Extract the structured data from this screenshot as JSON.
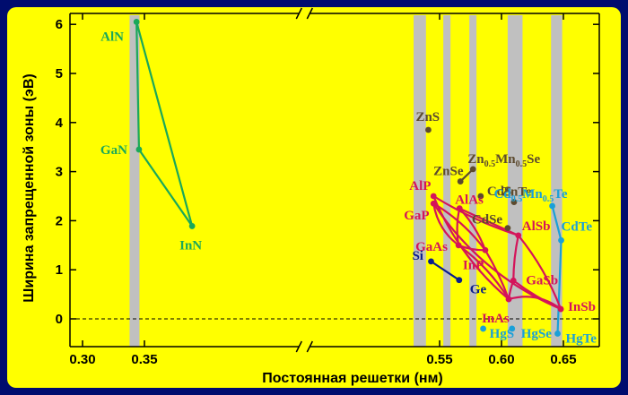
{
  "chart_data": {
    "type": "scatter",
    "title": "",
    "xlabel": "Постоянная решетки (нм)",
    "ylabel": "Ширина запрещенной зоны (эВ)",
    "xlim": [
      0.29,
      0.665
    ],
    "ylim": [
      -0.4,
      6.2
    ],
    "axis_break": [
      0.395,
      0.525
    ],
    "xticks": [
      {
        "value": 0.3,
        "label": "0.30"
      },
      {
        "value": 0.35,
        "label": "0.35"
      },
      {
        "value": 0.55,
        "label": "0.55"
      },
      {
        "value": 0.6,
        "label": "0.60"
      },
      {
        "value": 0.65,
        "label": "0.65"
      }
    ],
    "yticks": [
      {
        "value": 0,
        "label": "0"
      },
      {
        "value": 1,
        "label": "1"
      },
      {
        "value": 2,
        "label": "2"
      },
      {
        "value": 3,
        "label": "3"
      },
      {
        "value": 4,
        "label": "4"
      },
      {
        "value": 5,
        "label": "5"
      },
      {
        "value": 6,
        "label": "6"
      }
    ],
    "grid": false,
    "zero_line": "dashed",
    "bands": [
      [
        0.338,
        0.346
      ],
      [
        0.529,
        0.539
      ],
      [
        0.553,
        0.557
      ],
      [
        0.574,
        0.579
      ],
      [
        0.605,
        0.617
      ],
      [
        0.64,
        0.649
      ]
    ],
    "colors": {
      "nitrides": "#1aa85a",
      "iii_v": "#d4145a",
      "ii_vi": "#5c4a2e",
      "group_iv": "#0a1e8c",
      "hg_cd": "#1aa0d8"
    },
    "points": [
      {
        "name": "AlN",
        "label": [
          "AlN"
        ],
        "x": 0.3436,
        "y": 6.05,
        "group": "nitrides",
        "label_dx": -40,
        "label_dy": 16
      },
      {
        "name": "GaN",
        "label": [
          "GaN"
        ],
        "x": 0.3456,
        "y": 3.45,
        "group": "nitrides",
        "label_dx": -43,
        "label_dy": 0
      },
      {
        "name": "InN",
        "label": [
          "InN"
        ],
        "x": 0.3885,
        "y": 1.89,
        "group": "nitrides",
        "label_dx": -14,
        "label_dy": 21
      },
      {
        "name": "AlP",
        "label": [
          "AlP"
        ],
        "x": 0.5451,
        "y": 2.5,
        "group": "iii_v",
        "label_dx": -27,
        "label_dy": -12
      },
      {
        "name": "GaP",
        "label": [
          "GaP"
        ],
        "x": 0.5451,
        "y": 2.35,
        "group": "iii_v",
        "label_dx": -33,
        "label_dy": 13
      },
      {
        "name": "AlAs",
        "label": [
          "AlAs"
        ],
        "x": 0.5661,
        "y": 2.25,
        "group": "iii_v",
        "label_dx": -5,
        "label_dy": -10
      },
      {
        "name": "GaAs",
        "label": [
          "GaAs"
        ],
        "x": 0.5653,
        "y": 1.5,
        "group": "iii_v",
        "label_dx": -48,
        "label_dy": 1
      },
      {
        "name": "InP",
        "label": [
          "InP"
        ],
        "x": 0.5869,
        "y": 1.4,
        "group": "iii_v",
        "label_dx": -25,
        "label_dy": 16
      },
      {
        "name": "AlSb",
        "label": [
          "AlSb"
        ],
        "x": 0.6136,
        "y": 1.7,
        "group": "iii_v",
        "label_dx": 4,
        "label_dy": -11
      },
      {
        "name": "GaSb",
        "label": [
          "GaSb"
        ],
        "x": 0.6096,
        "y": 0.78,
        "group": "iii_v",
        "label_dx": 14,
        "label_dy": -1
      },
      {
        "name": "InAs",
        "label": [
          "InAs"
        ],
        "x": 0.6058,
        "y": 0.4,
        "group": "iii_v",
        "label_dx": -30,
        "label_dy": 21
      },
      {
        "name": "InSb",
        "label": [
          "InSb"
        ],
        "x": 0.6479,
        "y": 0.2,
        "group": "iii_v",
        "label_dx": 8,
        "label_dy": -3
      },
      {
        "name": "ZnS",
        "label": [
          "ZnS"
        ],
        "x": 0.5409,
        "y": 3.85,
        "group": "ii_vi",
        "label_dx": -14,
        "label_dy": -15
      },
      {
        "name": "ZnSe",
        "label": [
          "ZnSe"
        ],
        "x": 0.5668,
        "y": 2.8,
        "group": "ii_vi",
        "label_dx": -30,
        "label_dy": -12
      },
      {
        "name": "Zn0.5Mn0.5Se",
        "label": [
          "Zn",
          "0.5",
          "Mn",
          "0.5",
          "Se"
        ],
        "x": 0.577,
        "y": 3.05,
        "group": "ii_vi",
        "label_dx": -6,
        "label_dy": -12
      },
      {
        "name": "CdS",
        "label": [
          "CdS"
        ],
        "x": 0.5832,
        "y": 2.5,
        "group": "ii_vi",
        "label_dx": 7,
        "label_dy": -6
      },
      {
        "name": "CdSe",
        "label": [
          "CdSe"
        ],
        "x": 0.605,
        "y": 1.85,
        "group": "ii_vi",
        "label_dx": -40,
        "label_dy": -10
      },
      {
        "name": "ZnTe",
        "label": [
          "ZnTe"
        ],
        "x": 0.6101,
        "y": 2.38,
        "group": "ii_vi",
        "label_dx": -14,
        "label_dy": -12
      },
      {
        "name": "Si",
        "label": [
          "Si"
        ],
        "x": 0.5431,
        "y": 1.17,
        "group": "group_iv",
        "label_dx": -21,
        "label_dy": -7
      },
      {
        "name": "Ge",
        "label": [
          "Ge"
        ],
        "x": 0.5658,
        "y": 0.79,
        "group": "group_iv",
        "label_dx": 12,
        "label_dy": 10
      },
      {
        "name": "Cd0.5Mn0.5Te",
        "label": [
          "Cd",
          "0.5",
          "Mn",
          "0.5",
          "Te"
        ],
        "x": 0.641,
        "y": 2.3,
        "group": "hg_cd",
        "label_dx": -65,
        "label_dy": -14
      },
      {
        "name": "CdTe",
        "label": [
          "CdTe"
        ],
        "x": 0.6482,
        "y": 1.6,
        "group": "hg_cd",
        "label_dx": 0,
        "label_dy": -16
      },
      {
        "name": "HgS",
        "label": [
          "HgS"
        ],
        "x": 0.5852,
        "y": -0.2,
        "group": "hg_cd",
        "label_dx": 7,
        "label_dy": 5
      },
      {
        "name": "HgSe",
        "label": [
          "HgSe"
        ],
        "x": 0.6085,
        "y": -0.2,
        "group": "hg_cd",
        "label_dx": 10,
        "label_dy": 5
      },
      {
        "name": "HgTe",
        "label": [
          "HgTe"
        ],
        "x": 0.6453,
        "y": -0.3,
        "group": "hg_cd",
        "label_dx": 9,
        "label_dy": 5
      }
    ],
    "lines": [
      {
        "group": "nitrides",
        "from": "AlN",
        "to": "GaN",
        "curve": 0
      },
      {
        "group": "nitrides",
        "from": "GaN",
        "to": "InN",
        "curve": 0
      },
      {
        "group": "nitrides",
        "from": "AlN",
        "to": "InN",
        "curve": 0
      },
      {
        "group": "group_iv",
        "from": "Si",
        "to": "Ge",
        "curve": 0
      },
      {
        "group": "ii_vi",
        "from": "ZnSe",
        "to": "Zn0.5Mn0.5Se",
        "curve": 0
      },
      {
        "group": "hg_cd",
        "from": "Cd0.5Mn0.5Te",
        "to": "CdTe",
        "curve": 0
      },
      {
        "group": "hg_cd",
        "from": "CdTe",
        "to": "HgTe",
        "curve": 0
      },
      {
        "group": "iii_v",
        "from": "AlP",
        "to": "AlSb",
        "curve": 0.06
      },
      {
        "group": "iii_v",
        "from": "AlP",
        "to": "InAs",
        "curve": 0.12
      },
      {
        "group": "iii_v",
        "from": "GaP",
        "to": "InP",
        "curve": -0.1
      },
      {
        "group": "iii_v",
        "from": "GaP",
        "to": "GaAs",
        "curve": 0.2
      },
      {
        "group": "iii_v",
        "from": "GaP",
        "to": "InSb",
        "curve": 0.15
      },
      {
        "group": "iii_v",
        "from": "AlAs",
        "to": "AlSb",
        "curve": 0.0
      },
      {
        "group": "iii_v",
        "from": "AlAs",
        "to": "GaAs",
        "curve": 0.1
      },
      {
        "group": "iii_v",
        "from": "AlAs",
        "to": "InP",
        "curve": -0.1
      },
      {
        "group": "iii_v",
        "from": "GaAs",
        "to": "InAs",
        "curve": -0.1
      },
      {
        "group": "iii_v",
        "from": "GaAs",
        "to": "InP",
        "curve": 0.1
      },
      {
        "group": "iii_v",
        "from": "InP",
        "to": "InAs",
        "curve": -0.05
      },
      {
        "group": "iii_v",
        "from": "AlSb",
        "to": "GaSb",
        "curve": 0.05
      },
      {
        "group": "iii_v",
        "from": "AlSb",
        "to": "InSb",
        "curve": -0.08
      },
      {
        "group": "iii_v",
        "from": "GaSb",
        "to": "InSb",
        "curve": 0.05
      },
      {
        "group": "iii_v",
        "from": "GaSb",
        "to": "InAs",
        "curve": 0.05
      },
      {
        "group": "iii_v",
        "from": "InAs",
        "to": "InSb",
        "curve": -0.25
      }
    ]
  }
}
